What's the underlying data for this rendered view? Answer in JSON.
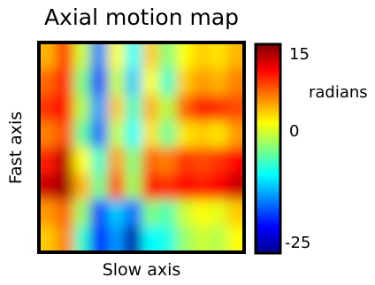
{
  "chart_data": {
    "type": "heatmap",
    "title": "Axial motion map",
    "xlabel": "Slow axis",
    "ylabel": "Fast axis",
    "colorbar": {
      "label": "radians",
      "range": [
        -25,
        15
      ],
      "ticks": [
        15,
        0,
        -25
      ],
      "colormap": "jet",
      "colors": [
        "#00008f",
        "#0000ff",
        "#00ffff",
        "#ffff00",
        "#ff0000",
        "#800000"
      ]
    },
    "grid": false,
    "rows_top_to_bottom": 8,
    "cols_left_to_right": 12,
    "z": [
      [
        3,
        8,
        -2,
        -15,
        0,
        -10,
        2,
        -5,
        0,
        2,
        1,
        3
      ],
      [
        6,
        9,
        -5,
        -18,
        -2,
        -12,
        0,
        -8,
        2,
        4,
        3,
        5
      ],
      [
        8,
        10,
        -3,
        -14,
        2,
        -8,
        3,
        -3,
        6,
        9,
        8,
        7
      ],
      [
        5,
        7,
        -6,
        -16,
        -2,
        -10,
        1,
        -6,
        1,
        2,
        1,
        4
      ],
      [
        9,
        13,
        0,
        -8,
        4,
        -5,
        6,
        5,
        8,
        7,
        8,
        10
      ],
      [
        12,
        14,
        3,
        -6,
        7,
        -4,
        9,
        8,
        10,
        9,
        10,
        12
      ],
      [
        4,
        6,
        -4,
        -18,
        -12,
        -16,
        -5,
        -7,
        -2,
        0,
        -1,
        2
      ],
      [
        2,
        5,
        -8,
        -20,
        -14,
        -24,
        -10,
        -9,
        -4,
        -2,
        -3,
        0
      ]
    ]
  }
}
